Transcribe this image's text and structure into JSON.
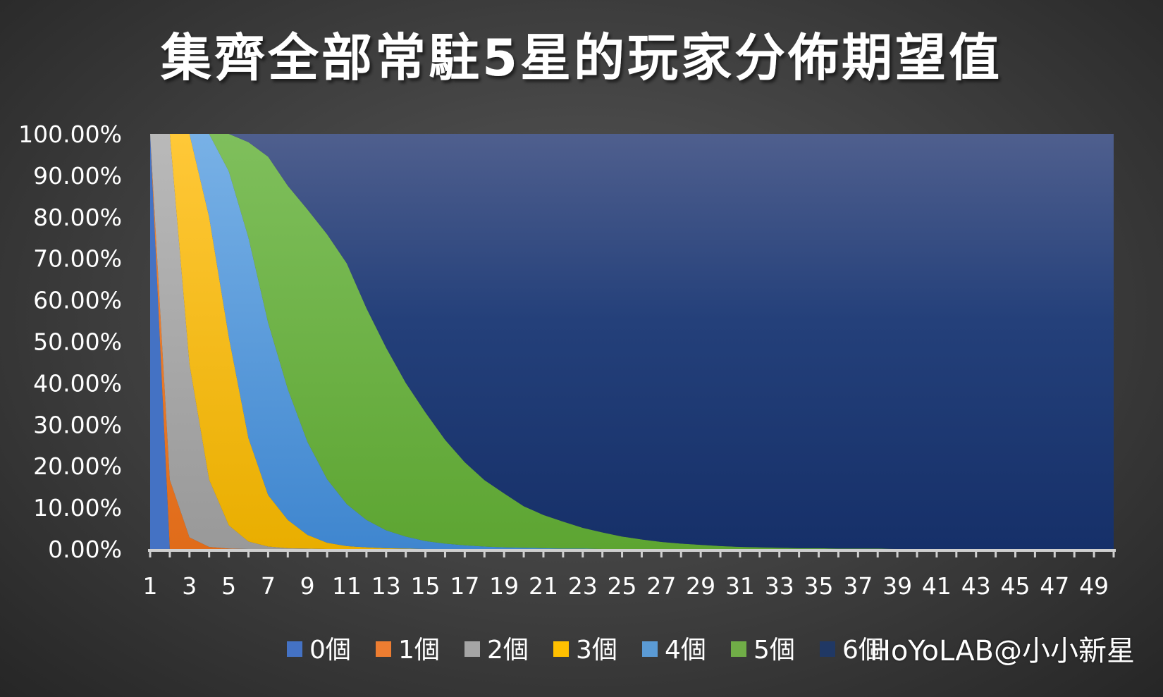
{
  "chart_data": {
    "type": "area",
    "stacked": true,
    "percent_stacked": true,
    "title": "集齊全部常駐5星的玩家分佈期望值",
    "x": [
      1,
      2,
      3,
      4,
      5,
      6,
      7,
      8,
      9,
      10,
      11,
      12,
      13,
      14,
      15,
      16,
      17,
      18,
      19,
      20,
      21,
      22,
      23,
      24,
      25,
      26,
      27,
      28,
      29,
      30,
      31,
      32,
      33,
      34,
      35,
      36,
      37,
      38,
      39,
      40,
      41,
      42,
      43,
      44,
      45,
      46,
      47,
      48,
      49,
      50
    ],
    "x_tick_labels": [
      "1",
      "3",
      "5",
      "7",
      "9",
      "11",
      "13",
      "15",
      "17",
      "19",
      "21",
      "23",
      "25",
      "27",
      "29",
      "31",
      "33",
      "35",
      "37",
      "39",
      "41",
      "43",
      "45",
      "47",
      "49"
    ],
    "y_tick_labels": [
      "100.00%",
      "90.00%",
      "80.00%",
      "70.00%",
      "60.00%",
      "50.00%",
      "40.00%",
      "30.00%",
      "20.00%",
      "10.00%",
      "0.00%"
    ],
    "ylim": [
      0,
      100
    ],
    "cumulative_boundaries_note": "values are percent of players; series are stacked bottom-to-top 0個..6個",
    "series": [
      {
        "name": "0個",
        "color": "#4472C4",
        "values": [
          100,
          0,
          0,
          0,
          0,
          0,
          0,
          0,
          0,
          0,
          0,
          0,
          0,
          0,
          0,
          0,
          0,
          0,
          0,
          0,
          0,
          0,
          0,
          0,
          0,
          0,
          0,
          0,
          0,
          0,
          0,
          0,
          0,
          0,
          0,
          0,
          0,
          0,
          0,
          0,
          0,
          0,
          0,
          0,
          0,
          0,
          0,
          0,
          0,
          0
        ]
      },
      {
        "name": "1個",
        "color": "#ED7D31",
        "values": [
          0,
          16.7,
          2.8,
          0.5,
          0.1,
          0,
          0,
          0,
          0,
          0,
          0,
          0,
          0,
          0,
          0,
          0,
          0,
          0,
          0,
          0,
          0,
          0,
          0,
          0,
          0,
          0,
          0,
          0,
          0,
          0,
          0,
          0,
          0,
          0,
          0,
          0,
          0,
          0,
          0,
          0,
          0,
          0,
          0,
          0,
          0,
          0,
          0,
          0,
          0,
          0
        ]
      },
      {
        "name": "2個",
        "color": "#A5A5A5",
        "values": [
          0,
          83.3,
          41.7,
          16.2,
          5.6,
          1.8,
          0.6,
          0.2,
          0.1,
          0,
          0,
          0,
          0,
          0,
          0,
          0,
          0,
          0,
          0,
          0,
          0,
          0,
          0,
          0,
          0,
          0,
          0,
          0,
          0,
          0,
          0,
          0,
          0,
          0,
          0,
          0,
          0,
          0,
          0,
          0,
          0,
          0,
          0,
          0,
          0,
          0,
          0,
          0,
          0,
          0
        ]
      },
      {
        "name": "3個",
        "color": "#FFC000",
        "values": [
          0,
          0,
          55.5,
          63.3,
          45.4,
          24.9,
          12.4,
          6.8,
          3.3,
          1.5,
          0.7,
          0.4,
          0.2,
          0.1,
          0,
          0,
          0,
          0,
          0,
          0,
          0,
          0,
          0,
          0,
          0,
          0,
          0,
          0,
          0,
          0,
          0,
          0,
          0,
          0,
          0,
          0,
          0,
          0,
          0,
          0,
          0,
          0,
          0,
          0,
          0,
          0,
          0,
          0,
          0,
          0
        ]
      },
      {
        "name": "4個",
        "color": "#5B9BD5",
        "values": [
          0,
          0,
          0,
          20,
          39.9,
          48.3,
          41.5,
          31.5,
          22.4,
          15.3,
          10.1,
          6.6,
          4.3,
          2.9,
          1.9,
          1.3,
          0.9,
          0.6,
          0.4,
          0.3,
          0.2,
          0.1,
          0.1,
          0,
          0,
          0,
          0,
          0,
          0,
          0,
          0,
          0,
          0,
          0,
          0,
          0,
          0,
          0,
          0,
          0,
          0,
          0,
          0,
          0,
          0,
          0,
          0,
          0,
          0,
          0
        ]
      },
      {
        "name": "5個",
        "color": "#70AD47",
        "values": [
          0,
          0,
          0,
          0,
          9,
          23,
          40,
          49,
          56,
          59,
          58,
          51,
          44,
          37,
          31,
          25,
          20,
          16,
          13,
          10,
          8,
          6.5,
          5,
          4,
          3,
          2.3,
          1.7,
          1.3,
          1,
          0.7,
          0.5,
          0.4,
          0.3,
          0.2,
          0.2,
          0.1,
          0.1,
          0.1,
          0,
          0,
          0,
          0,
          0,
          0,
          0,
          0,
          0,
          0,
          0,
          0
        ]
      },
      {
        "name": "6個",
        "color": "#203864",
        "values": [
          0,
          0,
          0,
          0,
          0,
          2,
          5.5,
          12.5,
          18.2,
          24.2,
          31.2,
          42,
          51.5,
          60,
          67.1,
          73.7,
          79.1,
          83.4,
          86.6,
          89.7,
          91.8,
          93.4,
          94.9,
          96,
          97,
          97.7,
          98.3,
          98.7,
          99,
          99.3,
          99.5,
          99.6,
          99.7,
          99.8,
          99.8,
          99.9,
          99.9,
          99.9,
          100,
          100,
          100,
          100,
          100,
          100,
          100,
          100,
          100,
          100,
          100,
          100
        ]
      }
    ],
    "legend_position": "bottom",
    "watermark": "HoYoLAB@小小新星"
  }
}
